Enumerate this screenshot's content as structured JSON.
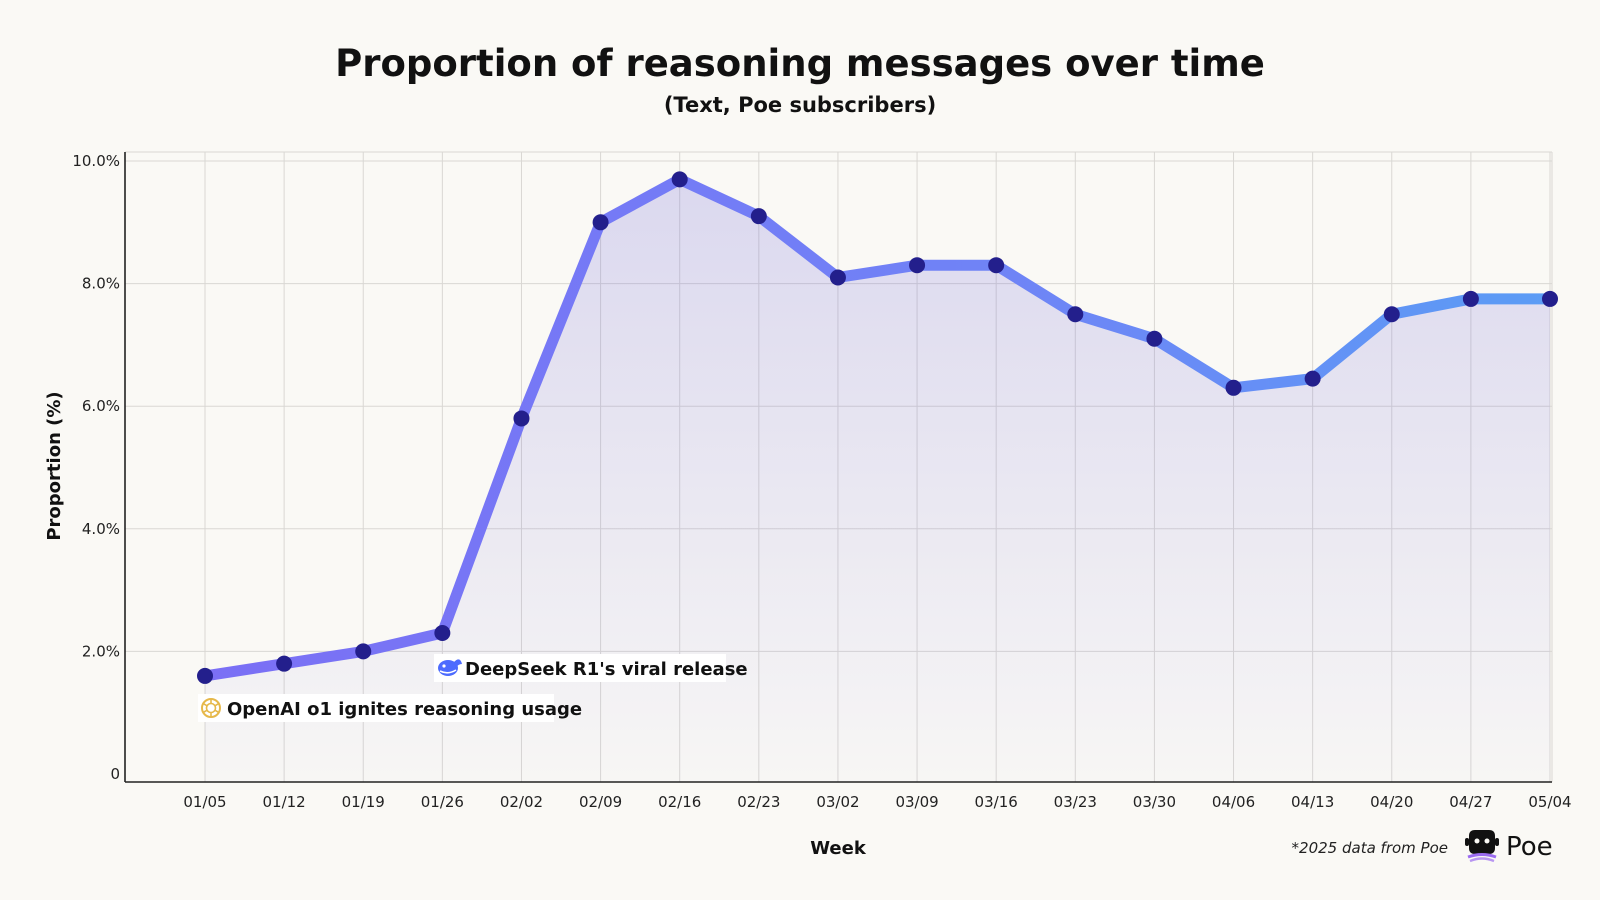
{
  "chart_data": {
    "type": "line",
    "title": "Proportion of reasoning messages over time",
    "subtitle": "(Text, Poe subscribers)",
    "xlabel": "Week",
    "ylabel": "Proportion (%)",
    "categories": [
      "01/05",
      "01/12",
      "01/19",
      "01/26",
      "02/02",
      "02/09",
      "02/16",
      "02/23",
      "03/02",
      "03/09",
      "03/16",
      "03/23",
      "03/30",
      "04/06",
      "04/13",
      "04/20",
      "04/27",
      "05/04"
    ],
    "series": [
      {
        "values": [
          1.6,
          1.8,
          2.0,
          2.3,
          5.8,
          9.0,
          9.7,
          9.1,
          8.1,
          8.3,
          8.3,
          7.5,
          7.1,
          6.3,
          6.45,
          7.5,
          7.75,
          7.75
        ]
      }
    ],
    "ylim": [
      0,
      10
    ],
    "yticks": [
      {
        "value": 0,
        "label": "0"
      },
      {
        "value": 2,
        "label": "2.0%"
      },
      {
        "value": 4,
        "label": "4.0%"
      },
      {
        "value": 6,
        "label": "6.0%"
      },
      {
        "value": 8,
        "label": "8.0%"
      },
      {
        "value": 10,
        "label": "10.0%"
      }
    ],
    "grid": true,
    "annotations": [
      {
        "text": "DeepSeek R1's viral release",
        "category": "01/26",
        "icon": "deepseek-whale-icon"
      },
      {
        "text": "OpenAI o1 ignites reasoning usage",
        "category": "01/05",
        "icon": "openai-logo-icon"
      }
    ],
    "colors": {
      "line_start": "#7b6ff5",
      "line_end": "#5b9cf5",
      "marker": "#231f8c",
      "fill": "#6c63d9",
      "grid": "#d9d7d3",
      "annotation_bg": "#ffffff",
      "openai_icon": "#e6b84a",
      "deepseek_icon": "#4d6bfe"
    }
  },
  "footnote": "*2025 data from Poe",
  "brand": {
    "name": "Poe",
    "icon": "poe-logo-icon",
    "colors": {
      "logo": "#111111",
      "accent": "#9b6cf0"
    }
  }
}
